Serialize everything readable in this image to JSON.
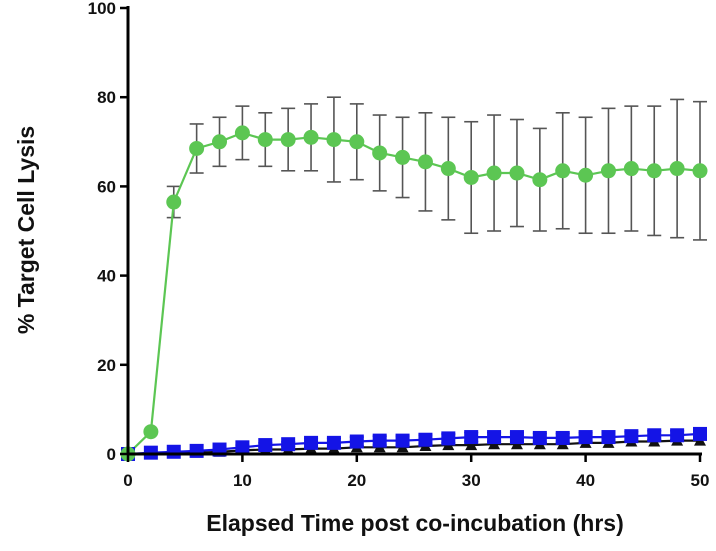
{
  "chart_data": {
    "type": "line",
    "title": "",
    "xlabel": "Elapsed Time post co-incubation (hrs)",
    "ylabel": "% Target Cell Lysis",
    "xlim": [
      0,
      50
    ],
    "ylim": [
      0,
      100
    ],
    "xticks": [
      0,
      10,
      20,
      30,
      40,
      50
    ],
    "yticks": [
      0,
      20,
      40,
      60,
      80,
      100
    ],
    "grid": false,
    "legend": "none",
    "series": [
      {
        "color": "#5cc653",
        "marker": "circle",
        "x": [
          0,
          2,
          4,
          6,
          8,
          10,
          12,
          14,
          16,
          18,
          20,
          22,
          24,
          26,
          28,
          30,
          32,
          34,
          36,
          38,
          40,
          42,
          44,
          46,
          48,
          50
        ],
        "y": [
          0,
          5,
          56.5,
          68.5,
          70,
          72,
          70.5,
          70.5,
          71,
          70.5,
          70,
          67.5,
          66.5,
          65.5,
          64,
          62,
          63,
          63,
          61.5,
          63.5,
          62.5,
          63.5,
          64,
          63.5,
          64,
          63.5
        ],
        "err": [
          0,
          0,
          3.5,
          5.5,
          5.5,
          6,
          6,
          7,
          7.5,
          9.5,
          8.5,
          8.5,
          9,
          11,
          11.5,
          12.5,
          13,
          12,
          11.5,
          13,
          13,
          14,
          14,
          14.5,
          15.5,
          15.5
        ]
      },
      {
        "color": "#1414e6",
        "marker": "square",
        "x": [
          0,
          2,
          4,
          6,
          8,
          10,
          12,
          14,
          16,
          18,
          20,
          22,
          24,
          26,
          28,
          30,
          32,
          34,
          36,
          38,
          40,
          42,
          44,
          46,
          48,
          50
        ],
        "y": [
          0,
          0.3,
          0.5,
          0.7,
          1.0,
          1.5,
          2.0,
          2.2,
          2.5,
          2.5,
          2.8,
          3.0,
          3.0,
          3.2,
          3.5,
          3.8,
          3.8,
          3.8,
          3.6,
          3.6,
          3.8,
          3.8,
          4.0,
          4.2,
          4.2,
          4.5
        ],
        "err": [
          0,
          0,
          0,
          0,
          0.5,
          0.5,
          0.5,
          0.5,
          1,
          1,
          1,
          1,
          1,
          1,
          1,
          1,
          1,
          1,
          1,
          1,
          1,
          1,
          1,
          1,
          1,
          1
        ]
      },
      {
        "color": "#111111",
        "marker": "triangle",
        "x": [
          0,
          2,
          4,
          6,
          8,
          10,
          12,
          14,
          16,
          18,
          20,
          22,
          24,
          26,
          28,
          30,
          32,
          34,
          36,
          38,
          40,
          42,
          44,
          46,
          48,
          50
        ],
        "y": [
          0,
          0,
          0.2,
          0.3,
          0.5,
          0.8,
          1.0,
          1.0,
          1.2,
          1.2,
          1.5,
          1.5,
          1.5,
          1.8,
          2.0,
          2.0,
          2.2,
          2.2,
          2.2,
          2.2,
          2.5,
          2.5,
          2.8,
          2.8,
          3.0,
          3.0
        ],
        "err": [
          0,
          0,
          0,
          0,
          0,
          0,
          0,
          0,
          0,
          0,
          0,
          0,
          0,
          0,
          0,
          0,
          0,
          0,
          0,
          0,
          0,
          0,
          0,
          0,
          0,
          0
        ]
      }
    ]
  }
}
